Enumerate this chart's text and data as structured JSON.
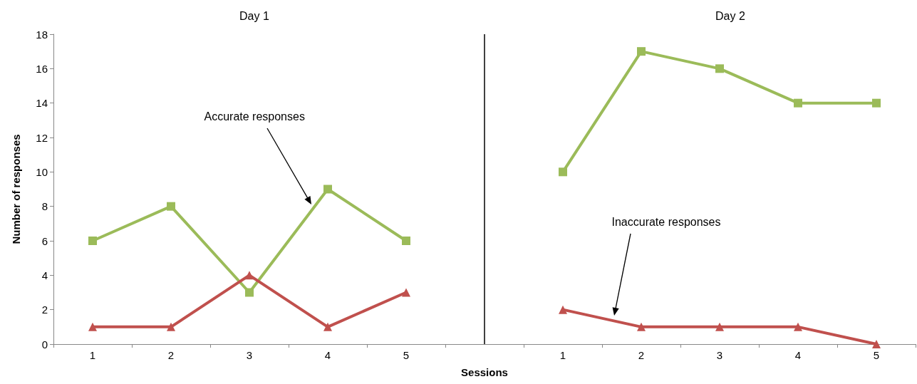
{
  "chart_data": {
    "type": "line",
    "xlabel": "Sessions",
    "ylabel": "Number of responses",
    "categories": [
      "1",
      "2",
      "3",
      "4",
      "5",
      null,
      "1",
      "2",
      "3",
      "4",
      "5"
    ],
    "ylim": [
      0,
      18
    ],
    "yticks": [
      0,
      2,
      4,
      6,
      8,
      10,
      12,
      14,
      16,
      18
    ],
    "series": [
      {
        "color": "#9bbb59",
        "marker": "square",
        "values": [
          6,
          8,
          3,
          9,
          6,
          null,
          10,
          17,
          16,
          14,
          14
        ]
      },
      {
        "color": "#c0504d",
        "marker": "triangle",
        "values": [
          1,
          1,
          4,
          1,
          3,
          null,
          2,
          1,
          1,
          1,
          0
        ]
      }
    ],
    "ref_lines": [
      {
        "axis": "x",
        "value": null,
        "color": "#000000"
      }
    ],
    "annotations": [
      "Day 1",
      "Day 2",
      "Accurate responses",
      "Inaccurate responses"
    ],
    "line_style": "solid"
  }
}
